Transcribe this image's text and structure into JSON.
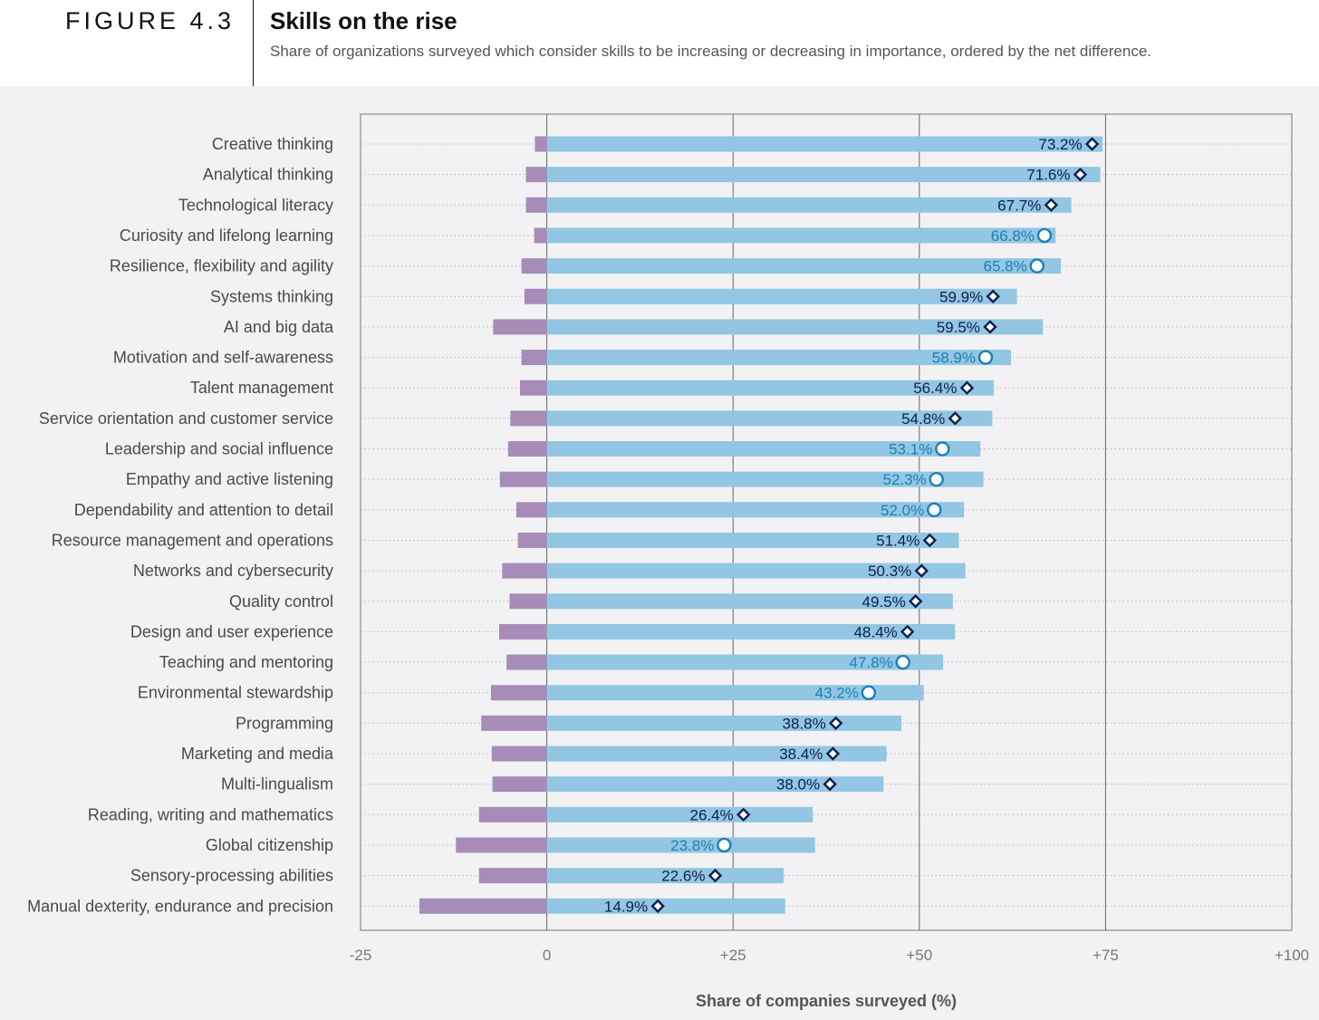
{
  "header": {
    "figure_label": "FIGURE 4.3",
    "title": "Skills on the rise",
    "subtitle": "Share of organizations surveyed which consider skills to be increasing or decreasing in importance, ordered by the net difference."
  },
  "colors": {
    "increasing": "#92c6e3",
    "decreasing": "#a68cb7",
    "marker_dark": "#0e1f4d",
    "marker_light": "#1c7fb5"
  },
  "chart_data": {
    "type": "bar",
    "orientation": "horizontal",
    "xlabel": "Share of companies surveyed (%)",
    "xlim": [
      -25,
      100
    ],
    "xticks": [
      -25,
      0,
      25,
      50,
      75,
      100
    ],
    "xtick_labels": [
      "-25",
      "0",
      "+25",
      "+50",
      "+75",
      "+100"
    ],
    "grid": true,
    "categories": [
      "Creative thinking",
      "Analytical thinking",
      "Technological literacy",
      "Curiosity and lifelong learning",
      "Resilience, flexibility and agility",
      "Systems thinking",
      "AI and big data",
      "Motivation and self-awareness",
      "Talent management",
      "Service orientation and customer service",
      "Leadership and social influence",
      "Empathy and active listening",
      "Dependability and attention to detail",
      "Resource management and operations",
      "Networks and cybersecurity",
      "Quality control",
      "Design and user experience",
      "Teaching and mentoring",
      "Environmental stewardship",
      "Programming",
      "Marketing and media",
      "Multi-lingualism",
      "Reading, writing and mathematics",
      "Global citizenship",
      "Sensory-processing abilities",
      "Manual dexterity, endurance and precision"
    ],
    "series": [
      {
        "values": [
          74.6,
          74.3,
          70.4,
          68.3,
          69.0,
          63.1,
          66.6,
          62.3,
          60.0,
          59.8,
          58.2,
          58.6,
          56.0,
          55.3,
          56.2,
          54.5,
          54.8,
          53.2,
          50.6,
          47.6,
          45.6,
          45.2,
          35.7,
          36.0,
          31.8,
          32.0
        ]
      },
      {
        "values": [
          -1.6,
          -2.8,
          -2.8,
          -1.7,
          -3.4,
          -3.0,
          -7.2,
          -3.4,
          -3.6,
          -4.9,
          -5.2,
          -6.3,
          -4.1,
          -3.9,
          -6.0,
          -5.0,
          -6.4,
          -5.4,
          -7.5,
          -8.8,
          -7.4,
          -7.3,
          -9.1,
          -12.2,
          -9.1,
          -17.1
        ]
      },
      {
        "values": [
          73.2,
          71.6,
          67.7,
          66.8,
          65.8,
          59.9,
          59.5,
          58.9,
          56.4,
          54.8,
          53.1,
          52.3,
          52.0,
          51.4,
          50.3,
          49.5,
          48.4,
          47.8,
          43.2,
          38.8,
          38.4,
          38.0,
          26.4,
          23.8,
          22.6,
          14.9
        ],
        "labels": [
          "73.2%",
          "71.6%",
          "67.7%",
          "66.8%",
          "65.8%",
          "59.9%",
          "59.5%",
          "58.9%",
          "56.4%",
          "54.8%",
          "53.1%",
          "52.3%",
          "52.0%",
          "51.4%",
          "50.3%",
          "49.5%",
          "48.4%",
          "47.8%",
          "43.2%",
          "38.8%",
          "38.4%",
          "38.0%",
          "26.4%",
          "23.8%",
          "22.6%",
          "14.9%"
        ],
        "marker_shapes": [
          "diamond",
          "diamond",
          "diamond",
          "circle",
          "circle",
          "diamond",
          "diamond",
          "circle",
          "diamond",
          "diamond",
          "circle",
          "circle",
          "circle",
          "diamond",
          "diamond",
          "diamond",
          "diamond",
          "circle",
          "circle",
          "diamond",
          "diamond",
          "diamond",
          "diamond",
          "circle",
          "diamond",
          "diamond"
        ]
      }
    ]
  }
}
